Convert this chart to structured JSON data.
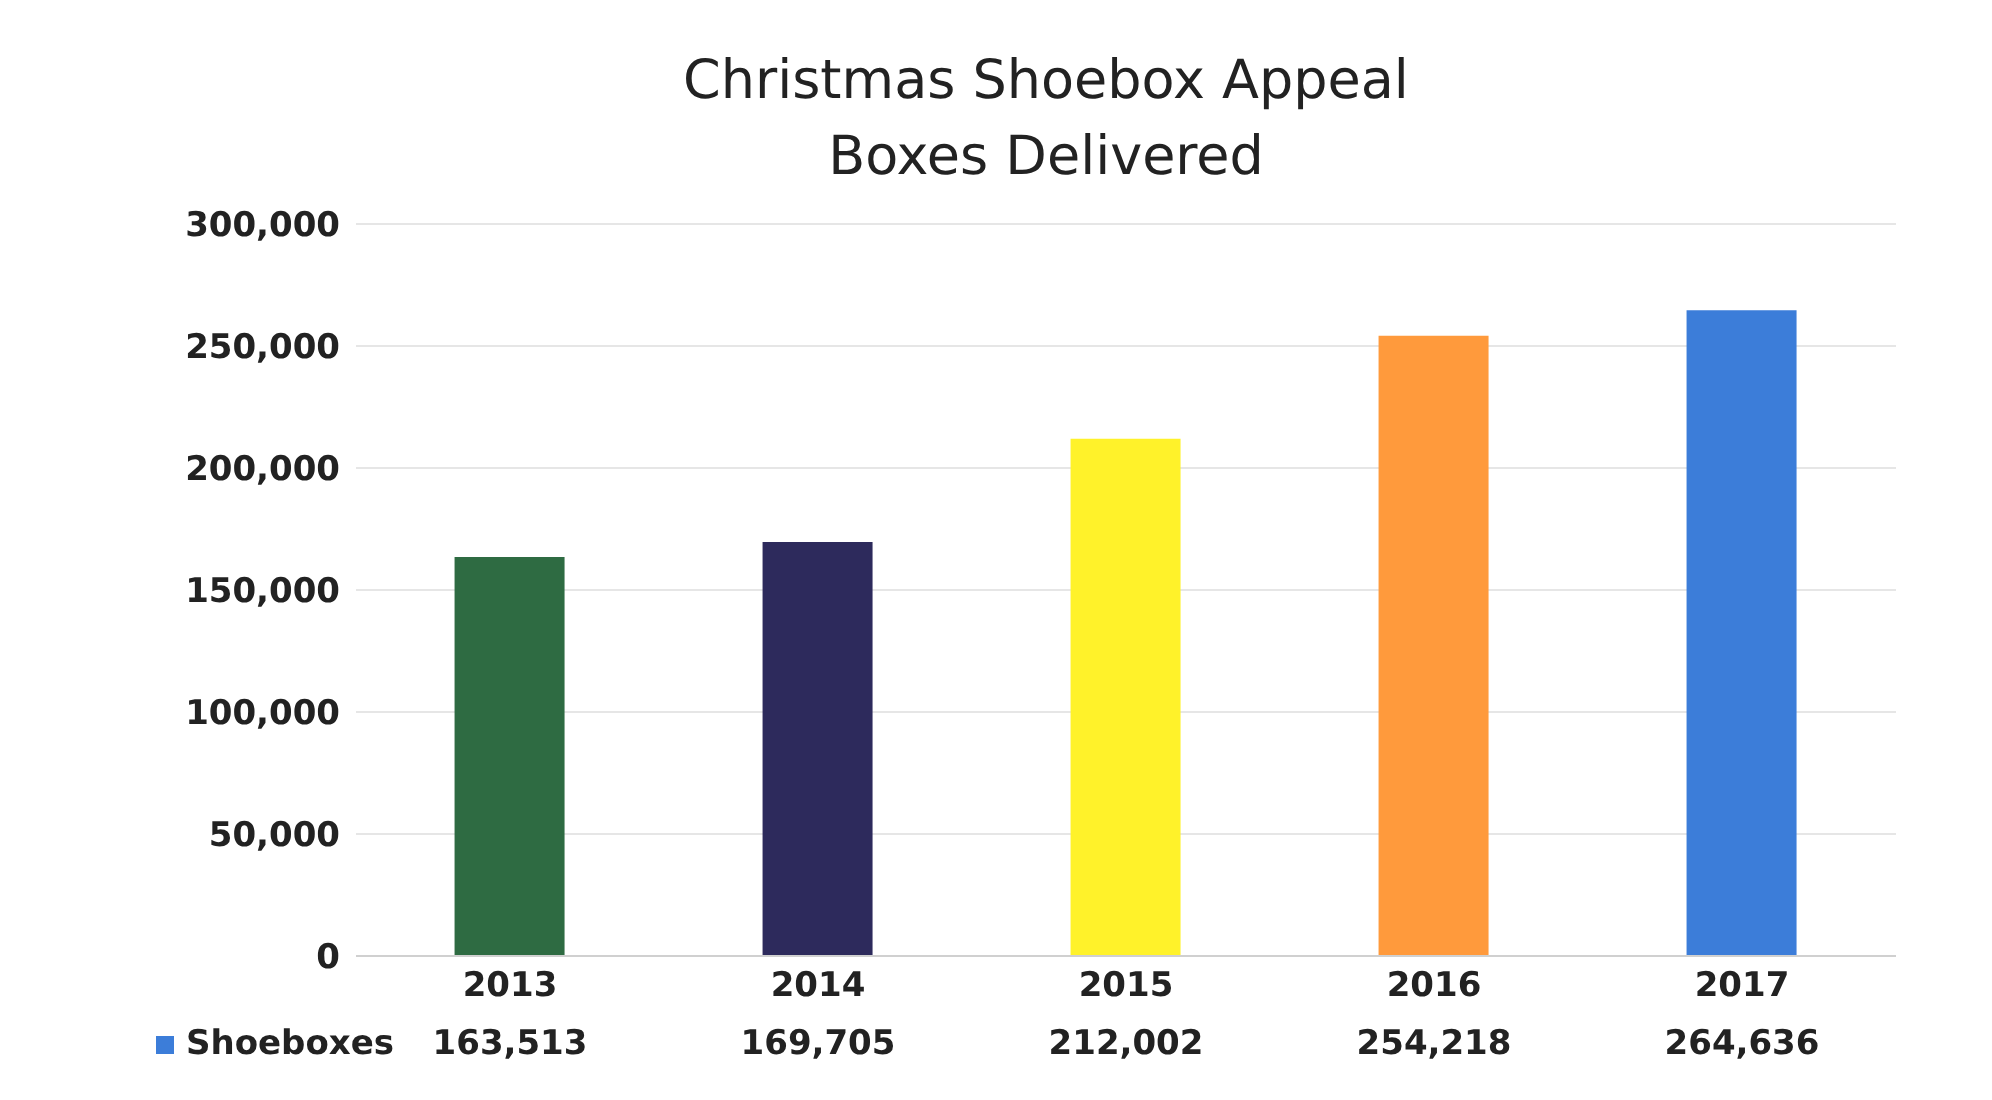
{
  "chart_data": {
    "type": "bar",
    "title": "Christmas Shoebox Appeal\nBoxes Delivered",
    "categories": [
      "2013",
      "2014",
      "2015",
      "2016",
      "2017"
    ],
    "series": [
      {
        "name": "Shoeboxes",
        "color": "#3c7dd9",
        "colors": [
          "#2e6b42",
          "#2d2a5c",
          "#fff22a",
          "#ff9a3c",
          "#3c7dd9"
        ],
        "values": [
          163513,
          169705,
          212002,
          254218,
          264636
        ],
        "value_labels": [
          "163,513",
          "169,705",
          "212,002",
          "254,218",
          "264,636"
        ]
      }
    ],
    "ylim": [
      0,
      300000
    ],
    "yticks": [
      {
        "value": 0,
        "label": "0"
      },
      {
        "value": 50000,
        "label": "50,000"
      },
      {
        "value": 100000,
        "label": "100,000"
      },
      {
        "value": 150000,
        "label": "150,000"
      },
      {
        "value": 200000,
        "label": "200,000"
      },
      {
        "value": 250000,
        "label": "250,000"
      },
      {
        "value": 300000,
        "label": "300,000"
      }
    ],
    "grid": "y",
    "legend": "bottom"
  }
}
